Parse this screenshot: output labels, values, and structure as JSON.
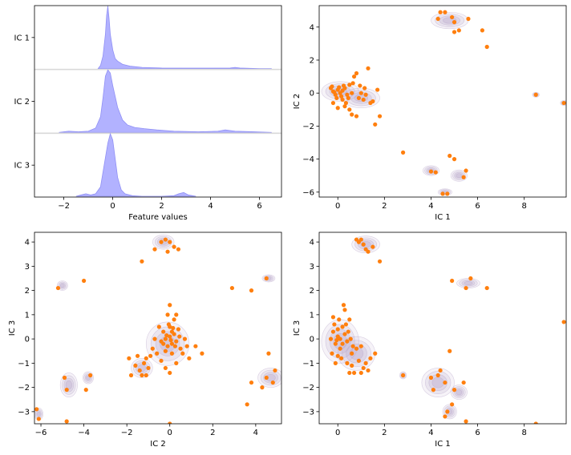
{
  "chart_data": [
    {
      "type": "ridgeline",
      "title": "",
      "xlabel": "Feature values",
      "ylabel": "",
      "xlim": [
        -3.2,
        6.9
      ],
      "xticks": [
        -2,
        0,
        2,
        4,
        6
      ],
      "fill_color": "#aaaaff",
      "line_color": "#9090f5",
      "baseline_color": "#d9d9d9",
      "series": [
        {
          "name": "IC 1",
          "label": "IC 1",
          "x": [
            -0.6,
            -0.5,
            -0.4,
            -0.3,
            -0.25,
            -0.2,
            -0.15,
            -0.1,
            0.0,
            0.1,
            0.2,
            0.4,
            0.7,
            1.2,
            2.0,
            3.0,
            4.0,
            4.8,
            5.0,
            5.2,
            6.0,
            6.5
          ],
          "density": [
            0.0,
            0.05,
            0.2,
            0.55,
            0.85,
            1.0,
            0.8,
            0.55,
            0.3,
            0.16,
            0.12,
            0.07,
            0.04,
            0.02,
            0.01,
            0.008,
            0.008,
            0.01,
            0.02,
            0.01,
            0.0,
            0.0
          ]
        },
        {
          "name": "IC 2",
          "label": "IC 2",
          "x": [
            -2.2,
            -1.8,
            -1.4,
            -1.0,
            -0.7,
            -0.5,
            -0.4,
            -0.3,
            -0.2,
            -0.1,
            0.0,
            0.2,
            0.4,
            0.6,
            0.9,
            1.3,
            1.8,
            2.5,
            3.5,
            4.3,
            4.6,
            5.0,
            5.8,
            6.5
          ],
          "density": [
            0.0,
            0.02,
            0.01,
            0.02,
            0.07,
            0.25,
            0.55,
            0.9,
            1.0,
            0.95,
            0.75,
            0.4,
            0.2,
            0.12,
            0.08,
            0.06,
            0.04,
            0.02,
            0.01,
            0.02,
            0.04,
            0.02,
            0.01,
            0.0
          ]
        },
        {
          "name": "IC 3",
          "label": "IC 3",
          "x": [
            -1.5,
            -1.3,
            -1.1,
            -0.9,
            -0.7,
            -0.5,
            -0.35,
            -0.2,
            -0.1,
            0.0,
            0.1,
            0.2,
            0.35,
            0.5,
            0.8,
            1.2,
            2.0,
            2.5,
            2.7,
            2.9,
            3.1,
            3.4
          ],
          "density": [
            0.0,
            0.02,
            0.04,
            0.02,
            0.04,
            0.15,
            0.5,
            0.85,
            1.0,
            0.9,
            0.6,
            0.3,
            0.1,
            0.04,
            0.01,
            0.0,
            0.0,
            0.01,
            0.04,
            0.06,
            0.02,
            0.0
          ]
        }
      ]
    },
    {
      "type": "scatter",
      "title": "",
      "xlabel": "IC 1",
      "ylabel": "IC 2",
      "xlim": [
        -0.8,
        9.8
      ],
      "ylim": [
        -6.3,
        5.3
      ],
      "xticks": [
        0,
        2,
        4,
        6,
        8
      ],
      "yticks": [
        -6,
        -4,
        -2,
        0,
        2,
        4
      ],
      "point_color": "#ff7f0e",
      "density_color": "#b7a6c9",
      "clusters": [
        {
          "cx": 0.1,
          "cy": 0.1,
          "rx": 0.8,
          "ry": 0.6
        },
        {
          "cx": 1.0,
          "cy": -0.3,
          "rx": 0.8,
          "ry": 0.6
        },
        {
          "cx": 4.8,
          "cy": 4.4,
          "rx": 0.8,
          "ry": 0.5
        },
        {
          "cx": 4.0,
          "cy": -4.7,
          "rx": 0.35,
          "ry": 0.3
        },
        {
          "cx": 5.2,
          "cy": -5.0,
          "rx": 0.35,
          "ry": 0.35
        },
        {
          "cx": 4.6,
          "cy": -6.0,
          "rx": 0.3,
          "ry": 0.2
        },
        {
          "cx": 8.5,
          "cy": -0.1,
          "rx": 0.15,
          "ry": 0.15
        },
        {
          "cx": 9.7,
          "cy": -0.6,
          "rx": 0.15,
          "ry": 0.15
        }
      ],
      "points": [
        [
          -0.3,
          0.3
        ],
        [
          -0.2,
          0.1
        ],
        [
          -0.1,
          -0.1
        ],
        [
          0.0,
          0.2
        ],
        [
          0.1,
          0.0
        ],
        [
          -0.25,
          0.4
        ],
        [
          0.05,
          0.35
        ],
        [
          0.15,
          -0.2
        ],
        [
          -0.05,
          -0.3
        ],
        [
          0.2,
          0.15
        ],
        [
          0.3,
          0.3
        ],
        [
          0.4,
          -0.1
        ],
        [
          0.5,
          0.5
        ],
        [
          0.6,
          0.0
        ],
        [
          0.7,
          1.0
        ],
        [
          0.8,
          1.2
        ],
        [
          0.9,
          -0.3
        ],
        [
          1.0,
          0.0
        ],
        [
          1.1,
          -0.4
        ],
        [
          1.2,
          -0.1
        ],
        [
          1.3,
          1.5
        ],
        [
          1.4,
          -0.6
        ],
        [
          1.5,
          -0.5
        ],
        [
          1.6,
          -1.9
        ],
        [
          1.7,
          0.2
        ],
        [
          1.8,
          -1.4
        ],
        [
          0.3,
          -0.8
        ],
        [
          0.5,
          -1.0
        ],
        [
          0.6,
          -1.3
        ],
        [
          0.8,
          -1.4
        ],
        [
          -0.2,
          -0.6
        ],
        [
          0.0,
          -0.9
        ],
        [
          0.2,
          -0.4
        ],
        [
          0.35,
          -0.6
        ],
        [
          0.45,
          -0.3
        ],
        [
          -0.15,
          0.05
        ],
        [
          0.25,
          0.45
        ],
        [
          0.65,
          0.6
        ],
        [
          0.95,
          0.45
        ],
        [
          1.15,
          0.3
        ],
        [
          2.8,
          -3.6
        ],
        [
          4.0,
          -4.75
        ],
        [
          4.2,
          -4.8
        ],
        [
          4.8,
          -3.8
        ],
        [
          5.0,
          -4.0
        ],
        [
          5.4,
          -5.1
        ],
        [
          5.5,
          -4.7
        ],
        [
          4.5,
          -6.1
        ],
        [
          4.7,
          -6.1
        ],
        [
          4.3,
          4.5
        ],
        [
          4.4,
          4.9
        ],
        [
          4.6,
          4.9
        ],
        [
          4.9,
          4.6
        ],
        [
          5.0,
          4.3
        ],
        [
          5.2,
          3.8
        ],
        [
          5.6,
          4.5
        ],
        [
          6.2,
          3.8
        ],
        [
          6.4,
          2.8
        ],
        [
          5.0,
          3.7
        ],
        [
          8.5,
          -0.1
        ],
        [
          9.7,
          -0.6
        ]
      ]
    },
    {
      "type": "scatter",
      "title": "",
      "xlabel": "IC 2",
      "ylabel": "IC 3",
      "xlim": [
        -6.3,
        5.2
      ],
      "ylim": [
        -3.5,
        4.4
      ],
      "xticks": [
        -6,
        -4,
        -2,
        0,
        2,
        4
      ],
      "yticks": [
        -3,
        -2,
        -1,
        0,
        1,
        2,
        3,
        4
      ],
      "point_color": "#ff7f0e",
      "density_color": "#b7a6c9",
      "clusters": [
        {
          "cx": -0.1,
          "cy": -0.2,
          "rx": 1.0,
          "ry": 0.9
        },
        {
          "cx": -1.3,
          "cy": -1.2,
          "rx": 0.5,
          "ry": 0.4
        },
        {
          "cx": -0.3,
          "cy": 4.0,
          "rx": 0.5,
          "ry": 0.3
        },
        {
          "cx": -5.0,
          "cy": 2.2,
          "rx": 0.25,
          "ry": 0.2
        },
        {
          "cx": -4.7,
          "cy": -1.9,
          "rx": 0.4,
          "ry": 0.5
        },
        {
          "cx": -3.8,
          "cy": -1.6,
          "rx": 0.25,
          "ry": 0.25
        },
        {
          "cx": 4.7,
          "cy": -1.6,
          "rx": 0.6,
          "ry": 0.4
        },
        {
          "cx": 4.6,
          "cy": 2.5,
          "rx": 0.3,
          "ry": 0.15
        },
        {
          "cx": -6.1,
          "cy": -3.1,
          "rx": 0.2,
          "ry": 0.25
        }
      ],
      "points": [
        [
          -0.2,
          0.0
        ],
        [
          0.0,
          0.1
        ],
        [
          0.1,
          -0.2
        ],
        [
          -0.1,
          -0.3
        ],
        [
          0.2,
          0.2
        ],
        [
          0.3,
          -0.1
        ],
        [
          -0.3,
          0.3
        ],
        [
          0.0,
          0.5
        ],
        [
          0.1,
          -0.6
        ],
        [
          -0.2,
          -0.5
        ],
        [
          0.4,
          0.4
        ],
        [
          -0.4,
          -0.1
        ],
        [
          0.2,
          0.8
        ],
        [
          -0.1,
          1.0
        ],
        [
          0.0,
          1.4
        ],
        [
          0.3,
          1.0
        ],
        [
          -0.5,
          0.5
        ],
        [
          0.5,
          -0.4
        ],
        [
          0.6,
          -0.6
        ],
        [
          -0.6,
          -0.6
        ],
        [
          0.7,
          0.0
        ],
        [
          -0.7,
          0.0
        ],
        [
          0.8,
          -0.3
        ],
        [
          -0.8,
          -0.4
        ],
        [
          0.9,
          -0.8
        ],
        [
          -0.9,
          -0.7
        ],
        [
          1.2,
          -0.3
        ],
        [
          1.5,
          -0.6
        ],
        [
          0.0,
          -1.4
        ],
        [
          -0.2,
          -1.2
        ],
        [
          0.3,
          -1.0
        ],
        [
          -0.4,
          -0.9
        ],
        [
          0.1,
          0.3
        ],
        [
          -0.15,
          0.15
        ],
        [
          0.25,
          -0.3
        ],
        [
          0.05,
          -0.05
        ],
        [
          -0.05,
          0.6
        ],
        [
          0.15,
          0.45
        ],
        [
          -0.3,
          -0.2
        ],
        [
          0.45,
          0.1
        ],
        [
          -1.2,
          -1.0
        ],
        [
          -1.4,
          -1.3
        ],
        [
          -1.1,
          -1.5
        ],
        [
          -1.6,
          -1.1
        ],
        [
          -1.3,
          -1.5
        ],
        [
          -1.0,
          -1.2
        ],
        [
          -1.8,
          -1.5
        ],
        [
          -1.9,
          -0.8
        ],
        [
          -1.5,
          -0.7
        ],
        [
          -1.1,
          -0.8
        ],
        [
          -1.3,
          3.2
        ],
        [
          -0.7,
          3.7
        ],
        [
          -0.4,
          4.0
        ],
        [
          -0.2,
          4.1
        ],
        [
          0.0,
          4.0
        ],
        [
          0.2,
          3.8
        ],
        [
          -0.1,
          3.6
        ],
        [
          0.4,
          3.7
        ],
        [
          -5.2,
          2.1
        ],
        [
          -4.0,
          2.4
        ],
        [
          -4.9,
          -1.6
        ],
        [
          -4.8,
          -2.1
        ],
        [
          -3.7,
          -1.5
        ],
        [
          -3.9,
          -2.1
        ],
        [
          -4.8,
          -3.4
        ],
        [
          4.3,
          -2.0
        ],
        [
          4.6,
          -0.6
        ],
        [
          4.5,
          -1.6
        ],
        [
          4.9,
          -1.3
        ],
        [
          4.8,
          -1.8
        ],
        [
          3.8,
          -1.8
        ],
        [
          3.6,
          -2.7
        ],
        [
          4.5,
          2.5
        ],
        [
          3.8,
          2.0
        ],
        [
          2.9,
          2.1
        ],
        [
          -6.2,
          -2.9
        ],
        [
          -6.1,
          -3.3
        ],
        [
          0.0,
          -3.5
        ]
      ]
    },
    {
      "type": "scatter",
      "title": "",
      "xlabel": "IC 1",
      "ylabel": "IC 3",
      "xlim": [
        -0.8,
        9.8
      ],
      "ylim": [
        -3.5,
        4.4
      ],
      "xticks": [
        0,
        2,
        4,
        6,
        8
      ],
      "yticks": [
        -3,
        -2,
        -1,
        0,
        1,
        2,
        3,
        4
      ],
      "point_color": "#ff7f0e",
      "density_color": "#b7a6c9",
      "clusters": [
        {
          "cx": 0.1,
          "cy": -0.1,
          "rx": 0.8,
          "ry": 0.9
        },
        {
          "cx": 0.8,
          "cy": -0.6,
          "rx": 0.8,
          "ry": 0.7
        },
        {
          "cx": 1.2,
          "cy": 3.9,
          "rx": 0.6,
          "ry": 0.35
        },
        {
          "cx": 4.3,
          "cy": -1.8,
          "rx": 0.7,
          "ry": 0.6
        },
        {
          "cx": 5.2,
          "cy": -2.2,
          "rx": 0.35,
          "ry": 0.3
        },
        {
          "cx": 4.8,
          "cy": -3.0,
          "rx": 0.3,
          "ry": 0.3
        },
        {
          "cx": 5.6,
          "cy": 2.3,
          "rx": 0.5,
          "ry": 0.2
        },
        {
          "cx": 2.8,
          "cy": -1.5,
          "rx": 0.15,
          "ry": 0.15
        }
      ],
      "points": [
        [
          -0.3,
          0.0
        ],
        [
          -0.2,
          0.3
        ],
        [
          -0.1,
          -0.2
        ],
        [
          0.0,
          0.1
        ],
        [
          0.1,
          -0.4
        ],
        [
          0.2,
          0.5
        ],
        [
          -0.25,
          -0.6
        ],
        [
          0.05,
          0.8
        ],
        [
          0.15,
          -0.8
        ],
        [
          -0.15,
          0.6
        ],
        [
          0.3,
          0.2
        ],
        [
          0.4,
          -0.1
        ],
        [
          0.5,
          0.8
        ],
        [
          0.6,
          -0.6
        ],
        [
          0.3,
          1.2
        ],
        [
          0.25,
          1.4
        ],
        [
          0.4,
          -1.0
        ],
        [
          0.6,
          -1.1
        ],
        [
          0.8,
          -0.4
        ],
        [
          0.9,
          -0.9
        ],
        [
          1.0,
          -0.3
        ],
        [
          1.1,
          -1.2
        ],
        [
          1.2,
          -1.0
        ],
        [
          1.4,
          -0.8
        ],
        [
          1.6,
          -0.6
        ],
        [
          0.7,
          -1.4
        ],
        [
          0.5,
          -1.4
        ],
        [
          1.0,
          -1.4
        ],
        [
          1.3,
          -1.3
        ],
        [
          -0.1,
          -1.0
        ],
        [
          0.0,
          0.4
        ],
        [
          0.1,
          0.0
        ],
        [
          -0.05,
          -0.05
        ],
        [
          0.2,
          -0.2
        ],
        [
          0.35,
          0.6
        ],
        [
          0.45,
          0.3
        ],
        [
          0.55,
          0.0
        ],
        [
          0.65,
          -0.3
        ],
        [
          -0.2,
          0.9
        ],
        [
          0.0,
          -0.7
        ],
        [
          0.8,
          4.1
        ],
        [
          0.9,
          4.0
        ],
        [
          1.0,
          4.1
        ],
        [
          1.1,
          3.9
        ],
        [
          1.3,
          3.6
        ],
        [
          1.5,
          3.8
        ],
        [
          1.8,
          3.2
        ],
        [
          1.2,
          3.7
        ],
        [
          2.8,
          -1.5
        ],
        [
          4.0,
          -1.6
        ],
        [
          4.1,
          -2.1
        ],
        [
          4.3,
          -1.5
        ],
        [
          4.4,
          -1.3
        ],
        [
          4.8,
          -0.5
        ],
        [
          4.6,
          -1.8
        ],
        [
          5.0,
          -2.1
        ],
        [
          5.4,
          -1.8
        ],
        [
          4.9,
          -2.7
        ],
        [
          4.7,
          -3.0
        ],
        [
          4.6,
          -3.2
        ],
        [
          5.5,
          -3.4
        ],
        [
          4.9,
          2.4
        ],
        [
          5.5,
          2.1
        ],
        [
          5.7,
          2.5
        ],
        [
          6.4,
          2.1
        ],
        [
          8.5,
          -3.5
        ],
        [
          9.7,
          0.7
        ]
      ]
    }
  ]
}
